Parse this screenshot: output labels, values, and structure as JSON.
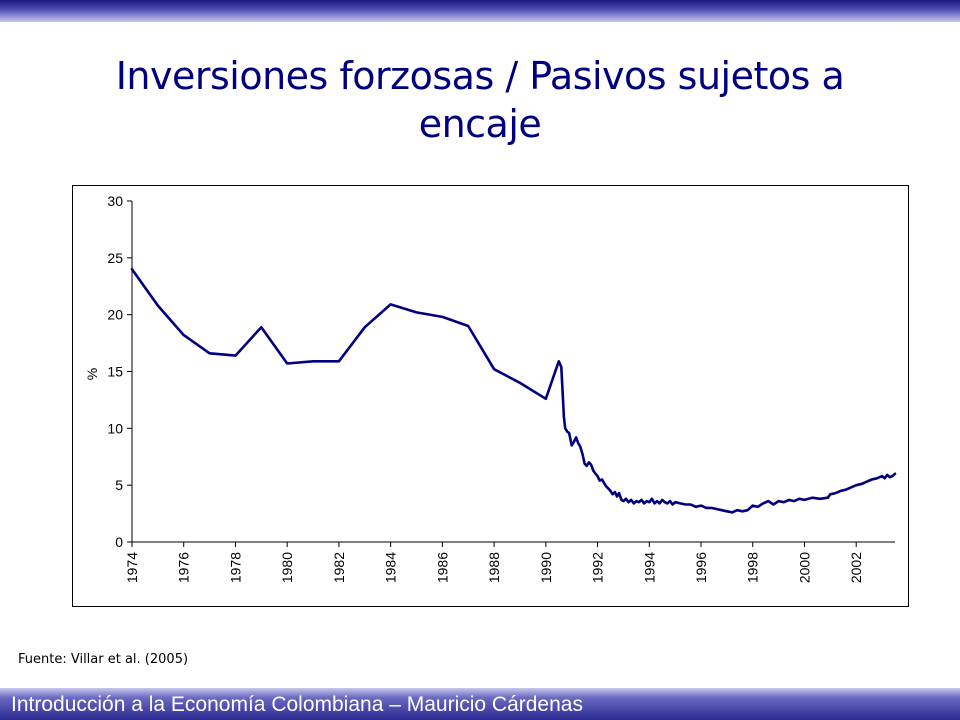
{
  "slide": {
    "title": "Inversiones forzosas / Pasivos sujetos a encaje",
    "source": "Fuente: Villar et al. (2005)",
    "footer": "Introducción a la Economía Colombiana – Mauricio Cárdenas"
  },
  "colors": {
    "title": "#000080",
    "series": "#000080",
    "bar_dark": "#1a1a80"
  },
  "chart_data": {
    "type": "line",
    "title": "",
    "xlabel": "",
    "ylabel": "%",
    "ylim": [
      0,
      30
    ],
    "yticks": [
      "0",
      "5",
      "10",
      "15",
      "20",
      "25",
      "30"
    ],
    "xlim": [
      1974,
      2003.5
    ],
    "xticks": [
      "1974",
      "1976",
      "1978",
      "1980",
      "1982",
      "1984",
      "1986",
      "1988",
      "1990",
      "1992",
      "1994",
      "1996",
      "1998",
      "2000",
      "2002"
    ],
    "grid": false,
    "legend": "none",
    "series": [
      {
        "x": [
          1974.0,
          1975.0,
          1976.0,
          1977.0,
          1978.0,
          1979.0,
          1980.0,
          1981.0,
          1982.0,
          1983.0,
          1984.0,
          1985.0,
          1986.0,
          1987.0,
          1988.0,
          1989.0,
          1990.0,
          1990.5,
          1990.6,
          1990.7,
          1990.75,
          1990.83,
          1990.9,
          1991.0,
          1991.08,
          1991.17,
          1991.25,
          1991.33,
          1991.42,
          1991.5,
          1991.58,
          1991.67,
          1991.75,
          1991.83,
          1991.92,
          1992.0,
          1992.08,
          1992.17,
          1992.25,
          1992.33,
          1992.42,
          1992.5,
          1992.58,
          1992.67,
          1992.75,
          1992.83,
          1992.92,
          1993.0,
          1993.1,
          1993.2,
          1993.3,
          1993.4,
          1993.5,
          1993.6,
          1993.7,
          1993.8,
          1993.9,
          1994.0,
          1994.1,
          1994.2,
          1994.3,
          1994.4,
          1994.5,
          1994.6,
          1994.7,
          1994.8,
          1994.9,
          1995.0,
          1995.2,
          1995.4,
          1995.6,
          1995.8,
          1996.0,
          1996.2,
          1996.4,
          1996.6,
          1996.8,
          1997.0,
          1997.2,
          1997.4,
          1997.6,
          1997.8,
          1998.0,
          1998.2,
          1998.4,
          1998.6,
          1998.8,
          1999.0,
          1999.2,
          1999.4,
          1999.6,
          1999.8,
          2000.0,
          2000.3,
          2000.6,
          2000.9,
          2001.0,
          2001.2,
          2001.4,
          2001.6,
          2001.8,
          2002.0,
          2002.2,
          2002.4,
          2002.6,
          2002.8,
          2003.0,
          2003.1,
          2003.2,
          2003.3,
          2003.4,
          2003.5
        ],
        "values": [
          24.0,
          20.8,
          18.2,
          16.6,
          16.4,
          18.9,
          15.7,
          15.9,
          15.9,
          18.9,
          20.9,
          20.2,
          19.8,
          19.0,
          15.2,
          14.0,
          12.6,
          15.9,
          15.4,
          11.0,
          10.0,
          9.7,
          9.6,
          8.5,
          8.8,
          9.2,
          8.7,
          8.4,
          7.7,
          6.9,
          6.7,
          7.0,
          6.8,
          6.3,
          6.0,
          5.8,
          5.4,
          5.5,
          5.2,
          4.9,
          4.7,
          4.5,
          4.2,
          4.4,
          4.0,
          4.3,
          3.7,
          3.6,
          3.8,
          3.5,
          3.7,
          3.4,
          3.6,
          3.5,
          3.7,
          3.4,
          3.6,
          3.5,
          3.8,
          3.4,
          3.6,
          3.4,
          3.7,
          3.5,
          3.4,
          3.6,
          3.3,
          3.5,
          3.4,
          3.3,
          3.3,
          3.1,
          3.2,
          3.0,
          3.0,
          2.9,
          2.8,
          2.7,
          2.6,
          2.8,
          2.7,
          2.8,
          3.2,
          3.1,
          3.4,
          3.6,
          3.3,
          3.6,
          3.5,
          3.7,
          3.6,
          3.8,
          3.7,
          3.9,
          3.8,
          3.9,
          4.2,
          4.3,
          4.5,
          4.6,
          4.8,
          5.0,
          5.1,
          5.3,
          5.5,
          5.6,
          5.8,
          5.6,
          5.9,
          5.7,
          5.8,
          6.0
        ]
      }
    ]
  }
}
